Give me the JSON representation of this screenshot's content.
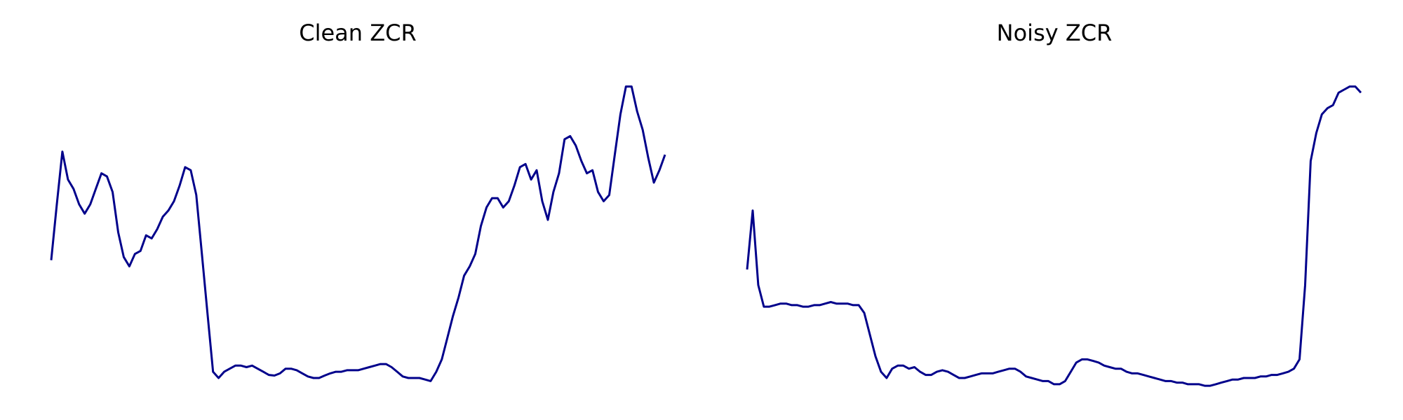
{
  "chart_data": [
    {
      "type": "line",
      "title": "Clean ZCR",
      "xlabel": "",
      "ylabel": "",
      "grid": false,
      "axes_visible": false,
      "color": "#00008b",
      "ylim": [
        0,
        1
      ],
      "x": [
        0,
        1,
        2,
        3,
        4,
        5,
        6,
        7,
        8,
        9,
        10,
        11,
        12,
        13,
        14,
        15,
        16,
        17,
        18,
        19,
        20,
        21,
        22,
        23,
        24,
        25,
        26,
        27,
        28,
        29,
        30,
        31,
        32,
        33,
        34,
        35,
        36,
        37,
        38,
        39,
        40,
        41,
        42,
        43,
        44,
        45,
        46,
        47,
        48,
        49,
        50,
        51,
        52,
        53,
        54,
        55,
        56,
        57,
        58,
        59,
        60,
        61,
        62,
        63,
        64,
        65,
        66,
        67,
        68,
        69,
        70,
        71,
        72,
        73,
        74,
        75,
        76,
        77,
        78,
        79,
        80,
        81,
        82,
        83,
        84,
        85,
        86,
        87,
        88,
        89,
        90,
        91,
        92,
        93,
        94,
        95,
        96,
        97,
        98,
        99,
        100,
        101,
        102,
        103,
        104,
        105,
        106,
        107,
        108,
        109,
        110
      ],
      "series": [
        {
          "values": [
            0.38,
            0.56,
            0.73,
            0.64,
            0.61,
            0.56,
            0.53,
            0.56,
            0.61,
            0.66,
            0.65,
            0.6,
            0.47,
            0.39,
            0.36,
            0.4,
            0.41,
            0.46,
            0.45,
            0.48,
            0.52,
            0.54,
            0.57,
            0.62,
            0.68,
            0.67,
            0.59,
            0.4,
            0.21,
            0.02,
            0.0,
            0.02,
            0.03,
            0.04,
            0.04,
            0.035,
            0.04,
            0.03,
            0.02,
            0.01,
            0.008,
            0.015,
            0.03,
            0.03,
            0.025,
            0.015,
            0.005,
            0.0,
            0.0,
            0.008,
            0.015,
            0.02,
            0.02,
            0.025,
            0.025,
            0.025,
            0.03,
            0.035,
            0.04,
            0.045,
            0.045,
            0.035,
            0.02,
            0.005,
            0.0,
            0.0,
            0.0,
            -0.005,
            -0.01,
            0.02,
            0.06,
            0.13,
            0.2,
            0.26,
            0.33,
            0.36,
            0.4,
            0.49,
            0.55,
            0.58,
            0.58,
            0.55,
            0.57,
            0.62,
            0.68,
            0.69,
            0.64,
            0.67,
            0.57,
            0.51,
            0.6,
            0.66,
            0.77,
            0.78,
            0.75,
            0.7,
            0.66,
            0.67,
            0.6,
            0.57,
            0.59,
            0.72,
            0.85,
            0.94,
            0.94,
            0.86,
            0.8,
            0.71,
            0.63,
            0.67,
            0.72
          ]
        }
      ]
    },
    {
      "type": "line",
      "title": "Noisy ZCR",
      "xlabel": "",
      "ylabel": "",
      "grid": false,
      "axes_visible": false,
      "color": "#00008b",
      "ylim": [
        0,
        1
      ],
      "x": [
        0,
        1,
        2,
        3,
        4,
        5,
        6,
        7,
        8,
        9,
        10,
        11,
        12,
        13,
        14,
        15,
        16,
        17,
        18,
        19,
        20,
        21,
        22,
        23,
        24,
        25,
        26,
        27,
        28,
        29,
        30,
        31,
        32,
        33,
        34,
        35,
        36,
        37,
        38,
        39,
        40,
        41,
        42,
        43,
        44,
        45,
        46,
        47,
        48,
        49,
        50,
        51,
        52,
        53,
        54,
        55,
        56,
        57,
        58,
        59,
        60,
        61,
        62,
        63,
        64,
        65,
        66,
        67,
        68,
        69,
        70,
        71,
        72,
        73,
        74,
        75,
        76,
        77,
        78,
        79,
        80,
        81,
        82,
        83,
        84,
        85,
        86,
        87,
        88,
        89,
        90,
        91,
        92,
        93,
        94,
        95,
        96,
        97,
        98,
        99,
        100,
        101,
        102,
        103,
        104,
        105,
        106,
        107,
        108,
        109,
        110
      ],
      "series": [
        {
          "values": [
            0.35,
            0.54,
            0.3,
            0.23,
            0.23,
            0.235,
            0.24,
            0.24,
            0.235,
            0.235,
            0.23,
            0.23,
            0.235,
            0.235,
            0.24,
            0.245,
            0.24,
            0.24,
            0.24,
            0.235,
            0.235,
            0.21,
            0.14,
            0.07,
            0.02,
            0.0,
            0.03,
            0.04,
            0.04,
            0.03,
            0.035,
            0.02,
            0.01,
            0.01,
            0.02,
            0.025,
            0.02,
            0.01,
            0.0,
            0.0,
            0.005,
            0.01,
            0.015,
            0.015,
            0.015,
            0.02,
            0.025,
            0.03,
            0.03,
            0.02,
            0.005,
            0.0,
            -0.005,
            -0.01,
            -0.01,
            -0.02,
            -0.02,
            -0.01,
            0.02,
            0.05,
            0.06,
            0.06,
            0.055,
            0.05,
            0.04,
            0.035,
            0.03,
            0.03,
            0.02,
            0.015,
            0.015,
            0.01,
            0.005,
            0.0,
            -0.005,
            -0.01,
            -0.01,
            -0.015,
            -0.015,
            -0.02,
            -0.02,
            -0.02,
            -0.025,
            -0.025,
            -0.02,
            -0.015,
            -0.01,
            -0.005,
            -0.005,
            0.0,
            0.0,
            0.0,
            0.005,
            0.005,
            0.01,
            0.01,
            0.015,
            0.02,
            0.03,
            0.06,
            0.3,
            0.7,
            0.79,
            0.85,
            0.87,
            0.88,
            0.92,
            0.93,
            0.94,
            0.94,
            0.92
          ]
        }
      ]
    }
  ]
}
